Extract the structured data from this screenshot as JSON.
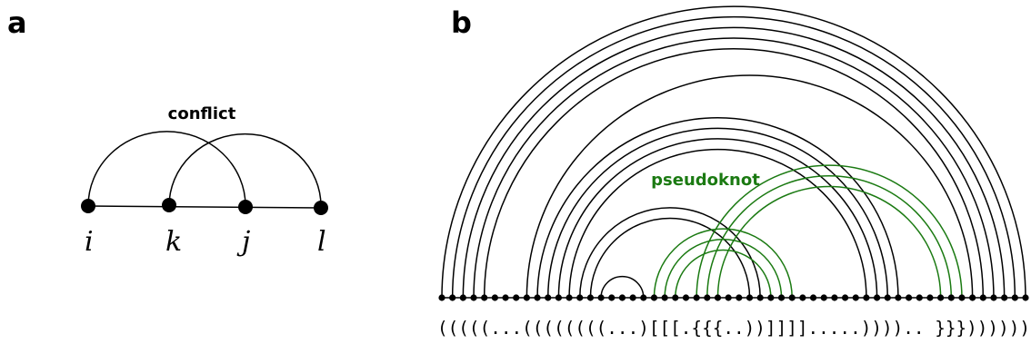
{
  "panel_a": {
    "label": "a",
    "annotation": "conflict",
    "nodes": [
      "i",
      "k",
      "j",
      "l"
    ],
    "arcs": [
      [
        0,
        2
      ],
      [
        1,
        3
      ]
    ]
  },
  "panel_b": {
    "label": "b",
    "annotation": "pseudoknot",
    "dot_bracket": "(((((...((((((((...)[[[.{{{..))]]]].....)))).. }}}))))))",
    "colors": {
      "base": "#000000",
      "pseudoknot": "#1b7a12"
    }
  }
}
